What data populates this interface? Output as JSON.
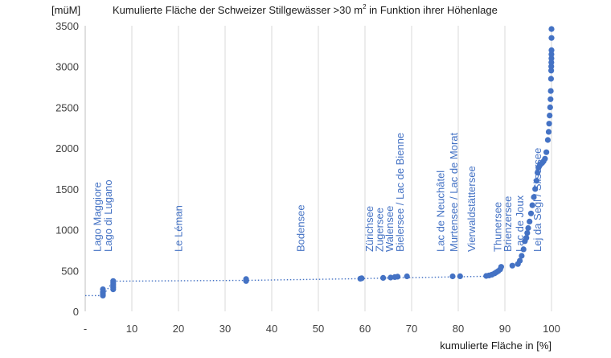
{
  "chart_data": {
    "type": "scatter",
    "title": "Kumulierte Fläche der Schweizer Stillgewässer >30 m",
    "title_sup": "2",
    "title_suffix": " in Funktion ihrer Höhenlage",
    "ylabel": "[müM]",
    "xlabel": "kumulierte Fläche in [%]",
    "xlim": [
      0,
      100
    ],
    "ylim": [
      0,
      3500
    ],
    "x_ticks": [
      "-",
      "10",
      "20",
      "30",
      "40",
      "50",
      "60",
      "70",
      "80",
      "90",
      "100"
    ],
    "y_ticks": [
      "0",
      "500",
      "1000",
      "1500",
      "2000",
      "2500",
      "3000",
      "3500"
    ],
    "grid": "vertical",
    "marker_color": "#4472c4",
    "lake_labels": [
      {
        "text": "Lago Maggiore",
        "x": 3.4
      },
      {
        "text": "Lago di Lugano",
        "x": 5.7
      },
      {
        "text": "Le Léman",
        "x": 20.8
      },
      {
        "text": "Bodensee",
        "x": 47.0
      },
      {
        "text": "Zürichsee",
        "x": 61.7
      },
      {
        "text": "Zugersee",
        "x": 63.9
      },
      {
        "text": "Walensee",
        "x": 66.0
      },
      {
        "text": "Bielersee / Lac de Bienne",
        "x": 68.3
      },
      {
        "text": "Lac de Neuchâtel",
        "x": 77.0
      },
      {
        "text": "Murtensee / Lac de Morat",
        "x": 79.8
      },
      {
        "text": "Vierwaldstättersee",
        "x": 83.6
      },
      {
        "text": "Thunersee",
        "x": 89.2
      },
      {
        "text": "Brienzersee",
        "x": 91.4
      },
      {
        "text": "Lac de Joux",
        "x": 94.0
      },
      {
        "text": "Lej da Segl / Silsersee",
        "x": 97.8
      }
    ],
    "trend": {
      "x": [
        0,
        3.8,
        6.0,
        34.5,
        59.0,
        66.0,
        72.0,
        86.0
      ],
      "y": [
        193,
        193,
        370,
        380,
        400,
        410,
        415,
        430
      ]
    },
    "points": {
      "x": [
        3.8,
        3.8,
        3.8,
        3.8,
        6.0,
        6.0,
        6.0,
        6.0,
        6.0,
        6.0,
        34.5,
        34.5,
        59.0,
        59.3,
        63.9,
        65.5,
        66.4,
        67.0,
        69.0,
        78.8,
        80.4,
        86.0,
        86.6,
        87.2,
        87.8,
        88.2,
        88.6,
        89.0,
        89.2,
        91.6,
        92.8,
        93.2,
        93.6,
        94.0,
        94.3,
        94.6,
        94.8,
        95.0,
        95.3,
        95.6,
        95.9,
        96.2,
        96.5,
        96.8,
        97.0,
        97.2,
        97.4,
        97.6,
        97.8,
        98.0,
        98.3,
        98.6,
        98.9,
        99.2,
        99.4,
        99.5,
        99.6,
        99.7,
        99.8,
        99.85,
        99.9,
        99.93,
        99.95,
        99.97,
        99.98,
        99.99,
        100,
        100,
        100
      ],
      "y": [
        193,
        210,
        235,
        270,
        270,
        290,
        310,
        330,
        350,
        372,
        372,
        395,
        400,
        405,
        410,
        414,
        420,
        425,
        429,
        429,
        430,
        434,
        440,
        450,
        465,
        480,
        495,
        515,
        545,
        560,
        580,
        620,
        680,
        760,
        860,
        900,
        960,
        1020,
        1100,
        1200,
        1300,
        1400,
        1500,
        1600,
        1700,
        1760,
        1780,
        1800,
        1810,
        1820,
        1840,
        1870,
        1950,
        2100,
        2200,
        2300,
        2400,
        2500,
        2600,
        2700,
        2850,
        2950,
        3000,
        3050,
        3100,
        3150,
        3200,
        3350,
        3460
      ]
    }
  }
}
